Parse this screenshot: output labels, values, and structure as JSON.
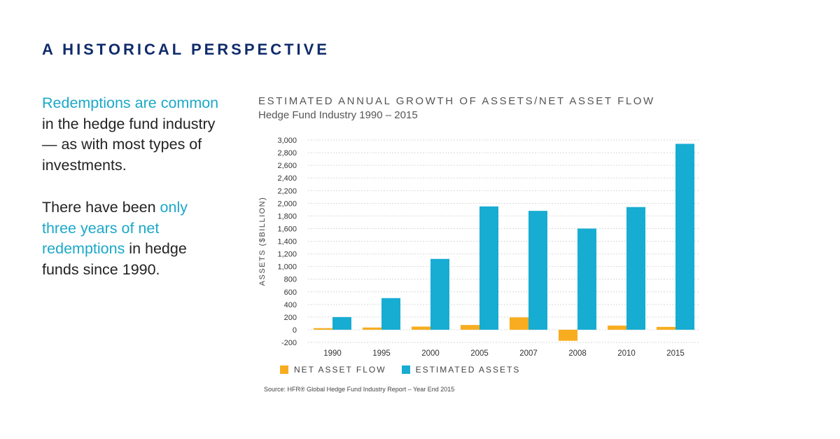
{
  "headline": "A HISTORICAL PERSPECTIVE",
  "left_text": {
    "p1_highlight": "Redemptions are common",
    "p1_rest": " in the hedge fund industry — as with most types of investments.",
    "p2_start": "There have been ",
    "p2_highlight": "only three years of net redemptions",
    "p2_rest": " in hedge funds since 1990."
  },
  "colors": {
    "headline": "#0f2b6b",
    "highlight": "#1ba8c8",
    "net_asset_flow": "#f7ad1f",
    "estimated_assets": "#17acd2"
  },
  "chart_data": {
    "type": "bar",
    "title": "ESTIMATED ANNUAL GROWTH OF ASSETS/NET ASSET FLOW",
    "subtitle": "Hedge Fund Industry 1990 – 2015",
    "ylabel": "ASSETS ($BILLION)",
    "xlabel": "",
    "ylim": [
      -200,
      3000
    ],
    "yticks": [
      -200,
      0,
      200,
      400,
      600,
      800,
      1000,
      1200,
      1400,
      1600,
      1800,
      2000,
      2200,
      2400,
      2600,
      2800,
      3000
    ],
    "ytick_labels": [
      "-200",
      "0",
      "200",
      "400",
      "600",
      "800",
      "1,000",
      "1,200",
      "1,400",
      "1,600",
      "1,800",
      "2,000",
      "2,200",
      "2,400",
      "2,600",
      "2,800",
      "3,000"
    ],
    "grid": true,
    "legend_placement": "bottom",
    "categories": [
      "1990",
      "1995",
      "2000",
      "2005",
      "2007",
      "2008",
      "2010",
      "2015"
    ],
    "series": [
      {
        "name": "NET ASSET FLOW",
        "color": "#f7ad1f",
        "values": [
          25,
          35,
          50,
          75,
          195,
          -175,
          65,
          45
        ]
      },
      {
        "name": "ESTIMATED ASSETS",
        "color": "#17acd2",
        "values": [
          200,
          500,
          1120,
          1950,
          1880,
          1600,
          1940,
          2940
        ]
      }
    ]
  },
  "source": "Source: HFR® Global Hedge Fund Industry Report – Year End 2015"
}
